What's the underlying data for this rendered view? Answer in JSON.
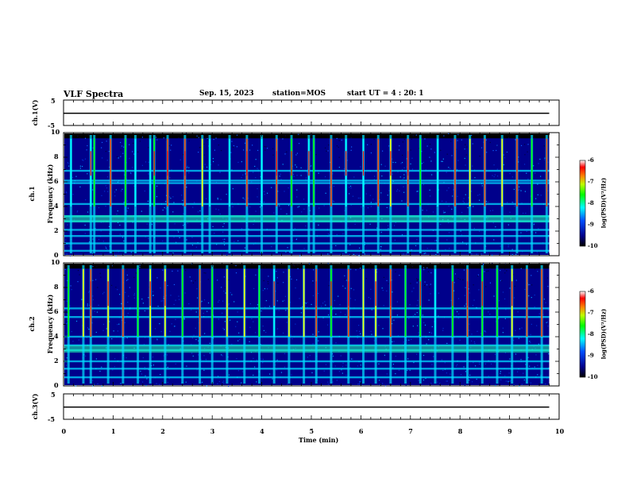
{
  "header": {
    "title": "VLF Spectra",
    "date": "Sep. 15, 2023",
    "station": "station=MOS",
    "start": "start UT =  4 : 20: 1"
  },
  "panels": {
    "ch1_label": "ch.1(V)",
    "ch1_ymax": "5",
    "ch1_ymin": "-5",
    "spec1_label_a": "ch.1",
    "spec1_label_b": "Frequency (kHz)",
    "spec2_label_a": "ch.2",
    "spec2_label_b": "Frequency (kHz)",
    "ch3_label": "ch.3(V)",
    "ch3_ymax": "5",
    "ch3_ymin": "-5"
  },
  "colorbar": {
    "label": "log(PSD)(V²/Hz)",
    "ticks": [
      "-6",
      "-7",
      "-8",
      "-9",
      "-10"
    ]
  },
  "xaxis": {
    "label": "Time (min)",
    "ticks": [
      "0",
      "1",
      "2",
      "3",
      "4",
      "5",
      "6",
      "7",
      "8",
      "9",
      "10"
    ]
  },
  "freq_ticks": [
    "0",
    "2",
    "4",
    "6",
    "8",
    "10"
  ],
  "colors": {
    "background_low": "#000000",
    "low": "#00008b",
    "mid": "#00ffff",
    "high": "#00ff00",
    "peak": "#ff0000"
  },
  "chart_data": [
    {
      "type": "line",
      "title": "VLF Spectra",
      "ylabel": "ch.1(V)",
      "xlabel": "Time (min)",
      "xlim": [
        0,
        10
      ],
      "ylim": [
        -5,
        5
      ],
      "series": [
        {
          "x": [
            0,
            9.8
          ],
          "y": [
            0,
            0
          ]
        }
      ]
    },
    {
      "type": "heatmap",
      "ylabel": "ch.1 Frequency (kHz)",
      "xlim": [
        0,
        10
      ],
      "ylim": [
        0,
        10
      ],
      "colorbar_label": "log(PSD)(V²/Hz)",
      "colorbar_range": [
        -10,
        -6
      ],
      "data_end_min": 9.8,
      "persistent_bands_khz": [
        0.4,
        1.0,
        1.6,
        2.1,
        2.8,
        3.2,
        4.2,
        5.9,
        6.1,
        6.9
      ],
      "burst_times_min": [
        0.15,
        0.55,
        0.62,
        0.95,
        1.25,
        1.45,
        1.75,
        1.83,
        2.1,
        2.45,
        2.8,
        2.95,
        3.35,
        3.7,
        4.0,
        4.3,
        4.6,
        4.95,
        5.05,
        5.4,
        5.7,
        6.05,
        6.35,
        6.6,
        6.95,
        7.2,
        7.55,
        7.9,
        8.2,
        8.5,
        8.85,
        9.15,
        9.45,
        9.75
      ]
    },
    {
      "type": "heatmap",
      "ylabel": "ch.2 Frequency (kHz)",
      "xlim": [
        0,
        10
      ],
      "ylim": [
        0,
        10
      ],
      "colorbar_label": "log(PSD)(V²/Hz)",
      "colorbar_range": [
        -10,
        -6
      ],
      "data_end_min": 9.8,
      "persistent_bands_khz": [
        0.7,
        1.4,
        2.0,
        2.9,
        3.3,
        4.0,
        5.6,
        6.3
      ],
      "burst_times_min": [
        0.1,
        0.4,
        0.55,
        0.9,
        1.2,
        1.5,
        1.75,
        2.05,
        2.4,
        2.75,
        3.0,
        3.3,
        3.65,
        3.95,
        4.25,
        4.55,
        4.85,
        5.1,
        5.4,
        5.75,
        6.05,
        6.3,
        6.6,
        6.9,
        7.2,
        7.5,
        7.85,
        8.15,
        8.45,
        8.75,
        9.05,
        9.35,
        9.65
      ]
    },
    {
      "type": "line",
      "ylabel": "ch.3(V)",
      "xlabel": "Time (min)",
      "xlim": [
        0,
        10
      ],
      "ylim": [
        -5,
        5
      ],
      "series": [
        {
          "x": [
            0,
            9.8
          ],
          "y": [
            0,
            0
          ]
        }
      ]
    }
  ]
}
